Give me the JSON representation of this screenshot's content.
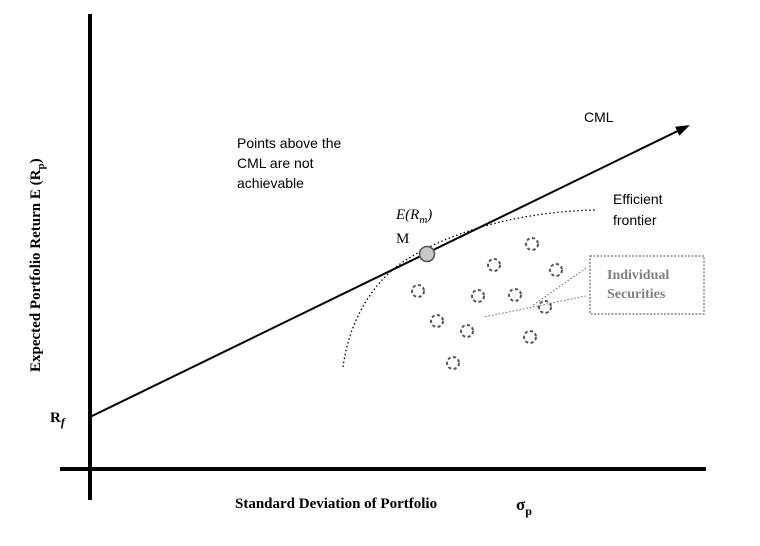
{
  "axes": {
    "y_label_main": "Expected Portfolio Return   E (R",
    "y_label_sub": "p",
    "y_label_close": ")",
    "x_label_main": "Standard Deviation of Portfolio",
    "x_label_symbol": "σ",
    "x_label_sub": "p"
  },
  "labels": {
    "rf_main": "R",
    "rf_sub": "f",
    "cml": "CML",
    "points_above_line1": "Points above the",
    "points_above_line2": "CML are not",
    "points_above_line3": "achievable",
    "market_return_main": "E(R",
    "market_return_sub": "m",
    "market_return_close": ")",
    "market_point": "M",
    "efficient_line1": "Efficient",
    "efficient_line2": "frontier",
    "securities_line1": "Individual",
    "securities_line2": "Securities"
  },
  "colors": {
    "axis": "#000000",
    "securities_text": "#7f7f7f",
    "frontier": "#000000",
    "security_marker": "#555555",
    "market_marker_fill": "#c8c8c8"
  }
}
